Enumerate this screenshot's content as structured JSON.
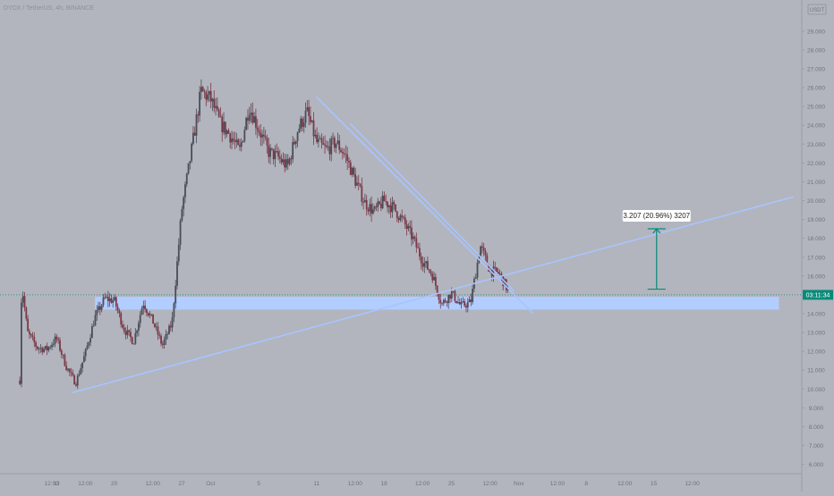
{
  "header": {
    "symbol_line": "DYDX / TetherUS, 4h, BINANCE"
  },
  "price_axis": {
    "currency_badge": "USDT",
    "current_price_label": "03:11:34",
    "tick_labels": [
      "6.000",
      "7.000",
      "8.000",
      "9.000",
      "10.000",
      "11.000",
      "12.000",
      "13.000",
      "14.000",
      "15.000",
      "16.000",
      "17.000",
      "18.000",
      "19.000",
      "20.000",
      "21.000",
      "22.000",
      "23.000",
      "24.000",
      "25.000",
      "26.000",
      "27.000",
      "28.000",
      "29.000"
    ]
  },
  "time_axis": {
    "tick_labels": [
      "12:00",
      "13",
      "12:00",
      "20",
      "12:00",
      "27",
      "Oct",
      "5",
      "11",
      "12:00",
      "18",
      "12:00",
      "25",
      "12:00",
      "Nov",
      "12:00",
      "8",
      "12:00",
      "15",
      "12:00"
    ],
    "tick_days": [
      13.5,
      14,
      17,
      20,
      24,
      27,
      30,
      35,
      41,
      45,
      48,
      52,
      55,
      59,
      62,
      66,
      69,
      73,
      76,
      80
    ]
  },
  "measure": {
    "label": "3.207 (20.96%) 3207"
  },
  "colors": {
    "background": "#b2b5be",
    "bull_candle": "#4a4d57",
    "bear_candle": "#7b3947",
    "trend_line": "#a8c4ff",
    "support_zone": "#b2cdff",
    "measure_arrow": "#0a8a7a",
    "current_price_line": "#0a8a7a"
  },
  "chart_data": {
    "type": "candlestick",
    "title": "DYDX / TetherUS, 4h, BINANCE",
    "x_unit": "day (September 2021)",
    "xlim": [
      10,
      91
    ],
    "ylim": [
      5.6,
      29.8
    ],
    "current_price": 15.0,
    "series": [
      {
        "kind": "close_path",
        "points": [
          [
            10,
            5.3
          ],
          [
            10.4,
            15.6
          ],
          [
            11,
            13.0
          ],
          [
            12,
            12.2
          ],
          [
            13,
            12.1
          ],
          [
            14,
            12.7
          ],
          [
            15,
            11.2
          ],
          [
            16,
            10.3
          ],
          [
            17,
            11.9
          ],
          [
            18,
            13.8
          ],
          [
            19,
            14.8
          ],
          [
            20,
            14.7
          ],
          [
            21,
            13.2
          ],
          [
            22,
            12.5
          ],
          [
            23,
            14.6
          ],
          [
            24,
            13.6
          ],
          [
            25,
            12.3
          ],
          [
            26,
            13.5
          ],
          [
            27,
            19.5
          ],
          [
            28,
            22.6
          ],
          [
            29,
            25.8
          ],
          [
            30,
            25.4
          ],
          [
            31,
            24.1
          ],
          [
            32,
            23.5
          ],
          [
            33,
            22.6
          ],
          [
            34,
            25.0
          ],
          [
            35,
            23.8
          ],
          [
            36,
            22.6
          ],
          [
            37,
            22.3
          ],
          [
            38,
            21.8
          ],
          [
            39,
            23.7
          ],
          [
            40,
            24.7
          ],
          [
            41,
            23.1
          ],
          [
            42,
            22.7
          ],
          [
            43,
            23.1
          ],
          [
            44,
            22.4
          ],
          [
            45,
            21.1
          ],
          [
            46,
            19.9
          ],
          [
            47,
            19.4
          ],
          [
            48,
            20.0
          ],
          [
            49,
            19.6
          ],
          [
            50,
            18.9
          ],
          [
            51,
            18.0
          ],
          [
            52,
            16.8
          ],
          [
            53,
            16.1
          ],
          [
            54,
            14.5
          ],
          [
            55,
            15.1
          ],
          [
            56,
            14.4
          ],
          [
            57,
            14.6
          ],
          [
            58,
            17.6
          ],
          [
            59,
            16.3
          ],
          [
            60,
            16.1
          ],
          [
            61,
            15.1
          ]
        ]
      }
    ],
    "annotations": {
      "trend_lines": [
        {
          "from": [
            15.6,
            9.8
          ],
          "to": [
            90.5,
            20.2
          ]
        },
        {
          "from": [
            41,
            25.5
          ],
          "to": [
            63.5,
            14.0
          ]
        },
        {
          "from": [
            44.5,
            24.1
          ],
          "to": [
            61.5,
            15.2
          ]
        }
      ],
      "support_zone": {
        "x": [
          18,
          89
        ],
        "y": [
          14.5,
          14.8
        ]
      },
      "price_range_measurement": {
        "x": 76.3,
        "from": 15.3,
        "to": 18.507,
        "change": 3.207,
        "percent": 20.96
      }
    }
  }
}
